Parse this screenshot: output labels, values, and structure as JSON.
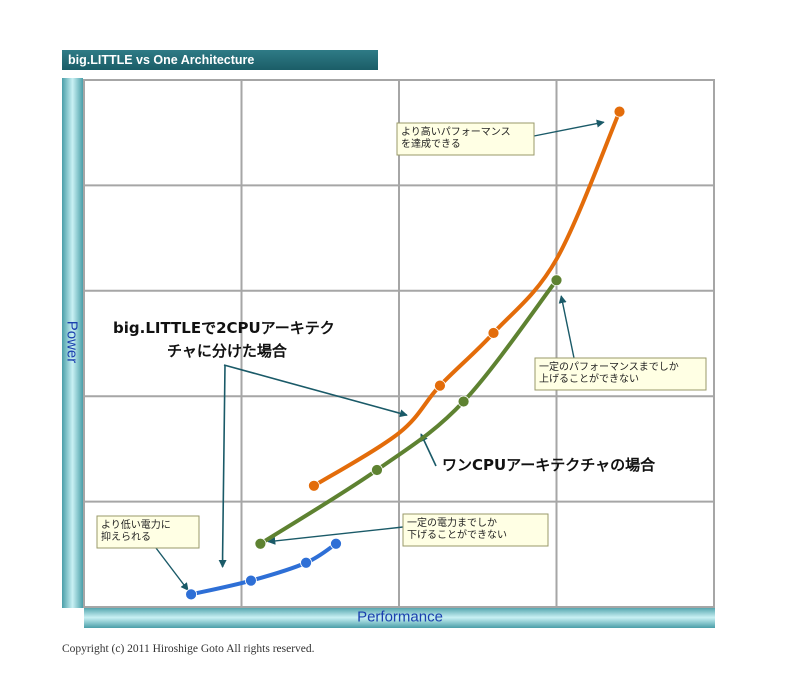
{
  "title": "big.LITTLE vs One Architecture",
  "copyright": "Copyright (c) 2011 Hiroshige Goto All rights reserved.",
  "colors": {
    "orange": "#e36c0a",
    "green": "#5e8231",
    "blue": "#2e6fd6",
    "grid": "#a6a6a6",
    "axis_title": "#1a3fae",
    "title_bar": "#1f6570"
  },
  "chart_data": {
    "type": "line",
    "title": "big.LITTLE vs One Architecture",
    "xlabel": "Performance",
    "ylabel": "Power",
    "xlim": [
      0,
      4
    ],
    "ylim": [
      0,
      5
    ],
    "grid": true,
    "tick_labels": false,
    "series": [
      {
        "color": "#e36c0a",
        "curved": true,
        "marked": [
          0,
          2,
          3,
          5
        ],
        "points": [
          [
            1.46,
            1.15
          ],
          [
            2.0,
            1.65
          ],
          [
            2.26,
            2.1
          ],
          [
            2.6,
            2.6
          ],
          [
            3.0,
            3.3
          ],
          [
            3.4,
            4.7
          ]
        ]
      },
      {
        "color": "#5e8231",
        "curved": true,
        "marked": [
          0,
          1,
          2,
          3
        ],
        "points": [
          [
            1.12,
            0.6
          ],
          [
            1.86,
            1.3
          ],
          [
            2.41,
            1.95
          ],
          [
            3.0,
            3.1
          ]
        ]
      },
      {
        "color": "#2e6fd6",
        "curved": true,
        "marked": [
          0,
          1,
          2,
          3
        ],
        "points": [
          [
            0.68,
            0.12
          ],
          [
            1.06,
            0.25
          ],
          [
            1.41,
            0.42
          ],
          [
            1.6,
            0.6
          ]
        ]
      }
    ],
    "annotations": [
      {
        "id": "higher-perf",
        "lines": [
          "より高いパフォーマンス",
          "を達成できる"
        ],
        "style": "box",
        "arrow_to": [
          3.3,
          4.6
        ]
      },
      {
        "id": "perf-limit",
        "lines": [
          "一定のパフォーマンスまでしか",
          "上げることができない"
        ],
        "style": "box",
        "arrow_to": [
          3.03,
          2.95
        ]
      },
      {
        "id": "power-limit",
        "lines": [
          "一定の電力までしか",
          "下げることができない"
        ],
        "style": "box",
        "arrow_to": [
          1.17,
          0.62
        ]
      },
      {
        "id": "lower-power",
        "lines": [
          "より低い電力に",
          "抑えられる"
        ],
        "style": "box",
        "arrow_to": [
          0.66,
          0.16
        ]
      },
      {
        "id": "big-little",
        "lines": [
          "big.LITTLEで2CPUアーキテク",
          "チャに分けた場合"
        ],
        "style": "label",
        "arrow_to": [
          [
            2.05,
            1.82
          ],
          [
            0.88,
            0.38
          ]
        ]
      },
      {
        "id": "one-cpu",
        "lines": [
          "ワンCPUアーキテクチャの場合"
        ],
        "style": "label",
        "arrow_to": [
          2.14,
          1.64
        ]
      }
    ]
  }
}
